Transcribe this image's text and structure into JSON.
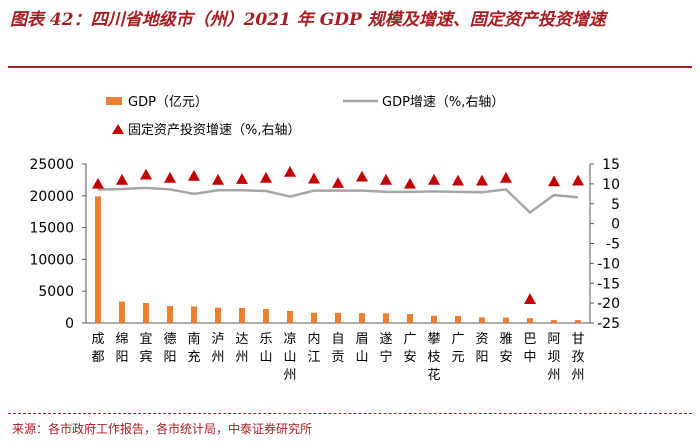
{
  "header": {
    "title": "图表 42：四川省地级市（州）2021 年 GDP 规模及增速、固定资产投资增速"
  },
  "footer": {
    "source": "来源：各市政府工作报告，各市统计局，中泰证券研究所"
  },
  "colors": {
    "bar": "#ed7d31",
    "line": "#a5a5a5",
    "marker": "#c00000",
    "title": "#a31e23"
  },
  "chart_data": {
    "type": "bar",
    "title": "",
    "xlabel": "",
    "ylabel": "",
    "categories": [
      "成都",
      "绵阳",
      "宜宾",
      "德阳",
      "南充",
      "泸州",
      "达州",
      "乐山",
      "凉山州",
      "内江",
      "自贡",
      "眉山",
      "遂宁",
      "广安",
      "攀枝花",
      "广元",
      "资阳",
      "雅安",
      "巴中",
      "阿坝州",
      "甘孜州"
    ],
    "series": [
      {
        "name": "GDP（亿元）",
        "type": "bar",
        "axis": "left",
        "values": [
          19917,
          3350,
          3148,
          2657,
          2601,
          2406,
          2351,
          2205,
          1901,
          1606,
          1602,
          1548,
          1519,
          1417,
          1134,
          1117,
          891,
          838,
          755,
          449,
          448
        ]
      },
      {
        "name": "GDP增速（%,右轴）",
        "type": "line",
        "axis": "right",
        "values": [
          8.6,
          8.7,
          9.0,
          8.6,
          7.5,
          8.4,
          8.4,
          8.2,
          6.8,
          8.3,
          8.3,
          8.3,
          8.0,
          8.0,
          8.1,
          8.0,
          7.9,
          8.6,
          2.8,
          7.2,
          6.6
        ]
      },
      {
        "name": "固定资产投资增速（%,右轴）",
        "type": "scatter",
        "axis": "right",
        "values": [
          10.0,
          11.0,
          12.3,
          11.5,
          12.0,
          11.0,
          11.2,
          11.5,
          13.0,
          11.3,
          10.2,
          11.8,
          11.0,
          10.0,
          11.0,
          10.8,
          10.8,
          11.5,
          -19.0,
          10.6,
          10.8
        ]
      }
    ],
    "ylim": [
      0,
      25000
    ],
    "yticks": [
      "0",
      "5000",
      "10000",
      "15000",
      "20000",
      "25000"
    ],
    "y2lim": [
      -25,
      15
    ],
    "y2ticks": [
      "15",
      "10",
      "5",
      "0",
      "-5",
      "-10",
      "-15",
      "-20",
      "-25"
    ],
    "legend_position": "top-left",
    "grid": false
  }
}
